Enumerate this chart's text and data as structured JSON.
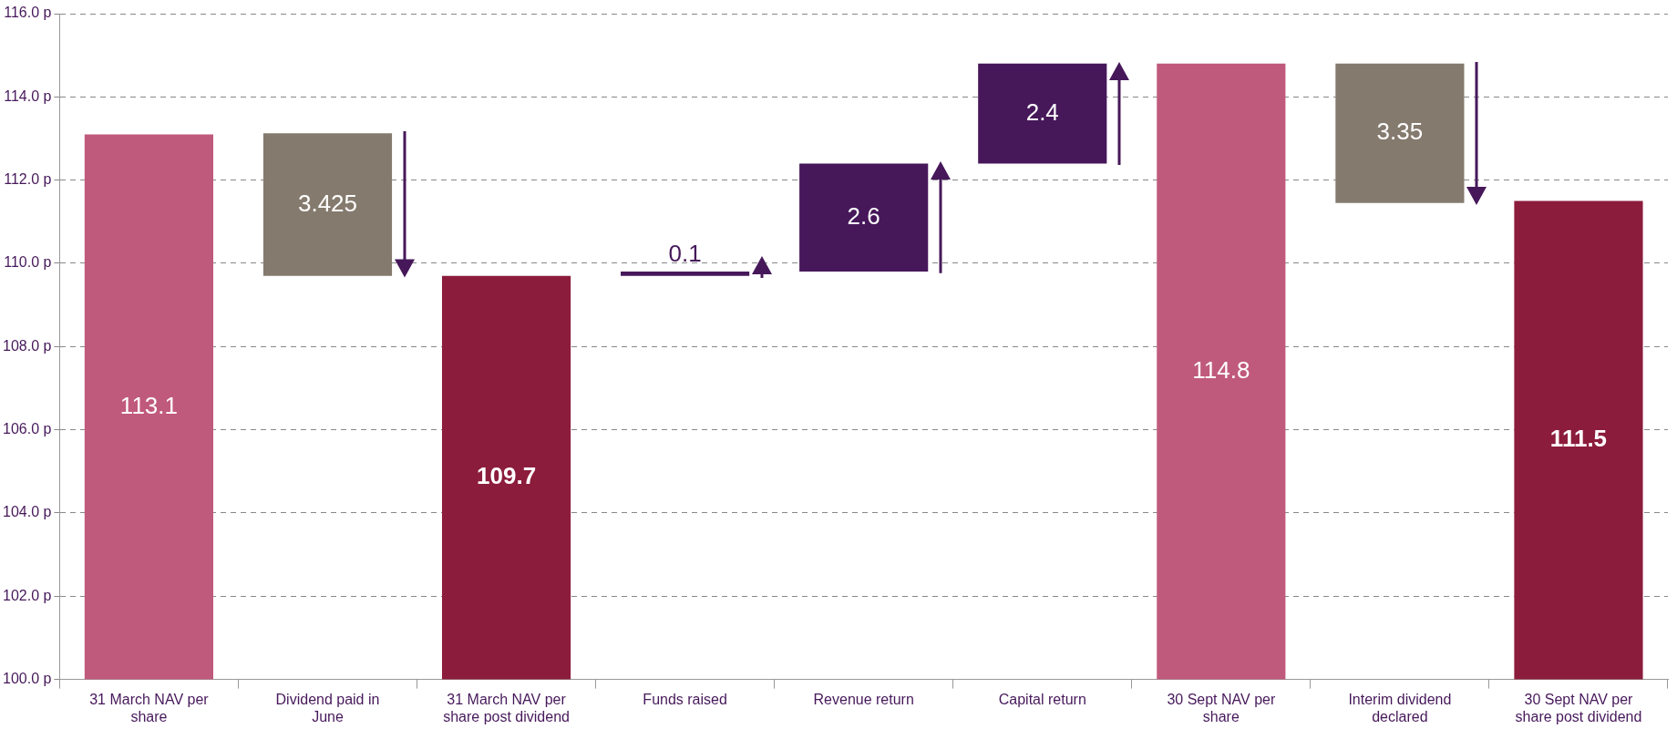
{
  "chart_data": {
    "type": "bar",
    "categories": [
      "31 March NAV per share",
      "Dividend paid in June",
      "31 March NAV per share post dividend",
      "Funds raised",
      "Revenue return",
      "Capital return",
      "30 Sept NAV per share",
      "Interim dividend declared",
      "30 Sept NAV per share post dividend"
    ],
    "values": [
      113.1,
      -3.425,
      109.7,
      0.1,
      2.6,
      2.4,
      114.8,
      -3.35,
      111.5
    ],
    "base": [
      null,
      113.125,
      null,
      109.7,
      109.8,
      112.4,
      null,
      114.8,
      null
    ],
    "value_labels": [
      "113.1",
      "3.425",
      "109.7",
      "0.1",
      "2.6",
      "2.4",
      "114.8",
      "3.35",
      "111.5"
    ],
    "colors": [
      "#c05a7c",
      "#857a6e",
      "#8c1c3c",
      "#46185a",
      "#46185a",
      "#46185a",
      "#c05a7c",
      "#857a6e",
      "#8c1c3c"
    ],
    "ylim": [
      100,
      116
    ],
    "yticks": [
      {
        "value": 100,
        "label": "100.0 p"
      },
      {
        "value": 102,
        "label": "102.0 p"
      },
      {
        "value": 104,
        "label": "104.0 p"
      },
      {
        "value": 106,
        "label": "106.0 p"
      },
      {
        "value": 108,
        "label": "108.0 p"
      },
      {
        "value": 110,
        "label": "110.0 p"
      },
      {
        "value": 112,
        "label": "112.0 p"
      },
      {
        "value": 114,
        "label": "114.0 p"
      },
      {
        "value": 116,
        "label": "116.0 p"
      }
    ],
    "grid": "y",
    "legend": false
  }
}
